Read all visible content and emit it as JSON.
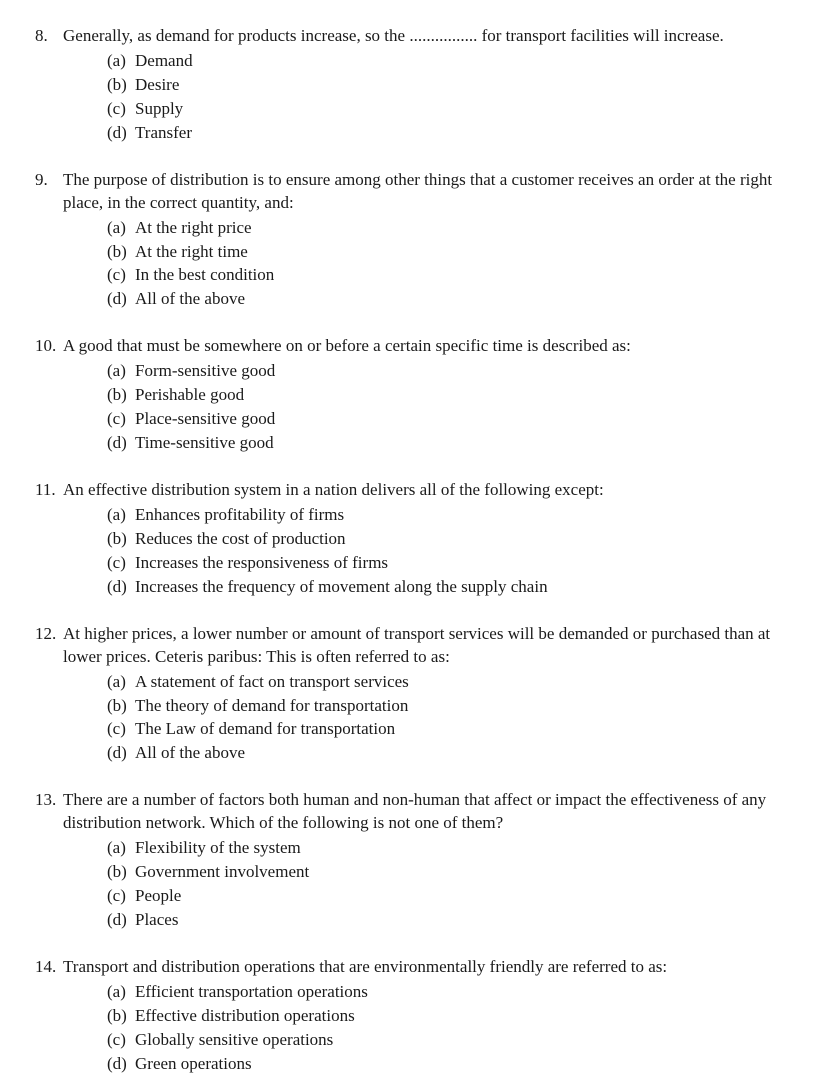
{
  "text_color": "#1a1a1a",
  "background_color": "#ffffff",
  "font_family": "Times New Roman",
  "font_size_pt": 13,
  "questions": [
    {
      "number": "8.",
      "stem": "Generally, as demand for products increase, so the ................ for transport facilities will increase.",
      "options": [
        {
          "label": "(a)",
          "text": "Demand"
        },
        {
          "label": "(b)",
          "text": "Desire"
        },
        {
          "label": "(c)",
          "text": "Supply"
        },
        {
          "label": "(d)",
          "text": "Transfer"
        }
      ]
    },
    {
      "number": "9.",
      "stem": "The purpose of distribution is to ensure among other things that a customer receives an order at the right place, in the correct quantity, and:",
      "options": [
        {
          "label": "(a)",
          "text": "At the right price"
        },
        {
          "label": "(b)",
          "text": "At the right time"
        },
        {
          "label": "(c)",
          "text": "In the best condition"
        },
        {
          "label": "(d)",
          "text": "All of the above"
        }
      ]
    },
    {
      "number": "10.",
      "stem": "A good that must be somewhere on or before a certain specific time is described as:",
      "options": [
        {
          "label": "(a)",
          "text": "Form-sensitive good"
        },
        {
          "label": "(b)",
          "text": "Perishable good"
        },
        {
          "label": "(c)",
          "text": "Place-sensitive good"
        },
        {
          "label": "(d)",
          "text": "Time-sensitive good"
        }
      ]
    },
    {
      "number": "11.",
      "stem": "An effective distribution system in a nation delivers all of the following except:",
      "options": [
        {
          "label": "(a)",
          "text": "Enhances profitability of firms"
        },
        {
          "label": "(b)",
          "text": "Reduces the cost of production"
        },
        {
          "label": "(c)",
          "text": "Increases the responsiveness of firms"
        },
        {
          "label": "(d)",
          "text": "Increases the frequency of movement along the supply chain"
        }
      ]
    },
    {
      "number": "12.",
      "stem": "At higher prices, a lower number or amount of transport services will be demanded or purchased than at lower prices. Ceteris paribus: This is often referred to as:",
      "options": [
        {
          "label": "(a)",
          "text": "A statement of fact on transport services"
        },
        {
          "label": "(b)",
          "text": "The theory of demand for transportation"
        },
        {
          "label": "(c)",
          "text": "The Law of demand for transportation"
        },
        {
          "label": "(d)",
          "text": "All of the above"
        }
      ]
    },
    {
      "number": "13.",
      "stem": "There are a number of factors both human and non-human that affect or impact the effectiveness of any distribution network. Which of the following is not one of them?",
      "options": [
        {
          "label": "(a)",
          "text": "Flexibility of the system"
        },
        {
          "label": "(b)",
          "text": "Government involvement"
        },
        {
          "label": "(c)",
          "text": "People"
        },
        {
          "label": "(d)",
          "text": "Places"
        }
      ]
    },
    {
      "number": "14.",
      "stem": "Transport and distribution operations that are environmentally friendly are referred to as:",
      "options": [
        {
          "label": "(a)",
          "text": "Efficient transportation operations"
        },
        {
          "label": "(b)",
          "text": "Effective distribution operations"
        },
        {
          "label": "(c)",
          "text": "Globally sensitive operations"
        },
        {
          "label": "(d)",
          "text": "Green operations"
        }
      ]
    }
  ]
}
